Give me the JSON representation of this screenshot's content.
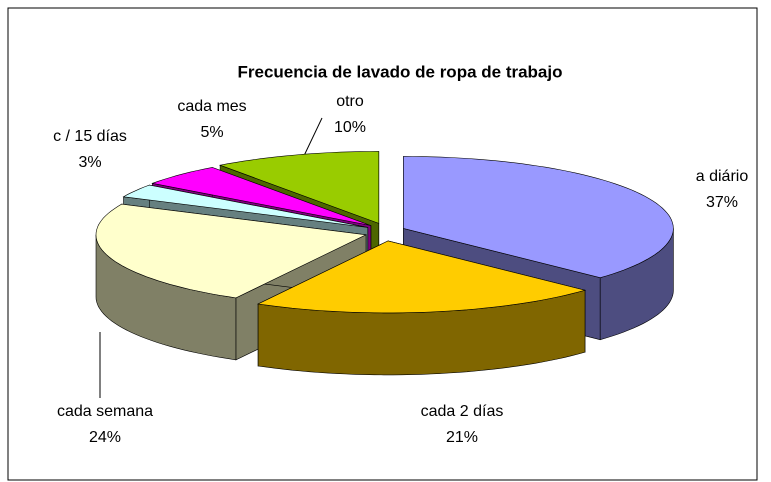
{
  "chart_data": {
    "type": "pie3d",
    "title": "Frecuencia de lavado de ropa de trabajo",
    "categories": [
      "a diário",
      "cada 2 días",
      "cada semana",
      "c / 15 días",
      "cada mes",
      "otro"
    ],
    "values": [
      37,
      21,
      24,
      3,
      5,
      10
    ],
    "value_labels": [
      "37%",
      "21%",
      "24%",
      "3%",
      "5%",
      "10%"
    ],
    "colors": [
      "#9999ff",
      "#ffcc00",
      "#ffffcc",
      "#ccffff",
      "#ff00ff",
      "#99cc00"
    ]
  }
}
